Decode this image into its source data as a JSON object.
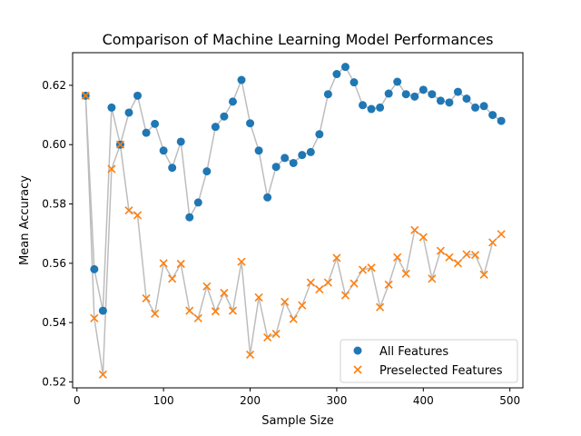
{
  "chart_data": {
    "type": "scatter",
    "title": "Comparison of Machine Learning Model Performances",
    "xlabel": "Sample Size",
    "ylabel": "Mean Accuracy",
    "xlim": [
      -5,
      515
    ],
    "ylim": [
      0.518,
      0.631
    ],
    "x_ticks": [
      0,
      100,
      200,
      300,
      400,
      500
    ],
    "y_ticks": [
      0.52,
      0.54,
      0.56,
      0.58,
      0.6,
      0.62
    ],
    "x_tick_labels": [
      "0",
      "100",
      "200",
      "300",
      "400",
      "500"
    ],
    "y_tick_labels": [
      "0.52",
      "0.54",
      "0.56",
      "0.58",
      "0.60",
      "0.62"
    ],
    "legend_position": "lower-right",
    "grid": false,
    "connector_color": "#bdbdbd",
    "x": [
      10,
      20,
      30,
      40,
      50,
      60,
      70,
      80,
      90,
      100,
      110,
      120,
      130,
      140,
      150,
      160,
      170,
      180,
      190,
      200,
      210,
      220,
      230,
      240,
      250,
      260,
      270,
      280,
      290,
      300,
      310,
      320,
      330,
      340,
      350,
      360,
      370,
      380,
      390,
      400,
      410,
      420,
      430,
      440,
      450,
      460,
      470,
      480,
      490
    ],
    "series": [
      {
        "name": "All Features",
        "marker": "circle",
        "color": "#1f77b4",
        "values": [
          0.6165,
          0.558,
          0.544,
          0.6125,
          0.6,
          0.6108,
          0.6165,
          0.604,
          0.607,
          0.598,
          0.5922,
          0.601,
          0.5755,
          0.5805,
          0.591,
          0.606,
          0.6095,
          0.6145,
          0.6218,
          0.6072,
          0.598,
          0.5822,
          0.5925,
          0.5955,
          0.5938,
          0.5965,
          0.5975,
          0.6035,
          0.617,
          0.6238,
          0.6262,
          0.621,
          0.6133,
          0.612,
          0.6125,
          0.6172,
          0.6212,
          0.617,
          0.6162,
          0.6185,
          0.617,
          0.6148,
          0.6142,
          0.6178,
          0.6155,
          0.6125,
          0.613,
          0.61,
          0.608
        ]
      },
      {
        "name": "Preselected Features",
        "marker": "x",
        "color": "#ff7f0e",
        "values": [
          0.6165,
          0.5415,
          0.5225,
          0.5918,
          0.6,
          0.5778,
          0.5762,
          0.5482,
          0.543,
          0.56,
          0.5548,
          0.5598,
          0.544,
          0.5415,
          0.5522,
          0.5438,
          0.55,
          0.544,
          0.5605,
          0.5292,
          0.5485,
          0.535,
          0.5362,
          0.547,
          0.5412,
          0.5458,
          0.5535,
          0.5512,
          0.5535,
          0.5618,
          0.5492,
          0.5532,
          0.5578,
          0.5585,
          0.5452,
          0.5528,
          0.562,
          0.5565,
          0.5712,
          0.5688,
          0.5548,
          0.5642,
          0.562,
          0.56,
          0.563,
          0.5628,
          0.5562,
          0.567,
          0.5698
        ]
      }
    ]
  }
}
